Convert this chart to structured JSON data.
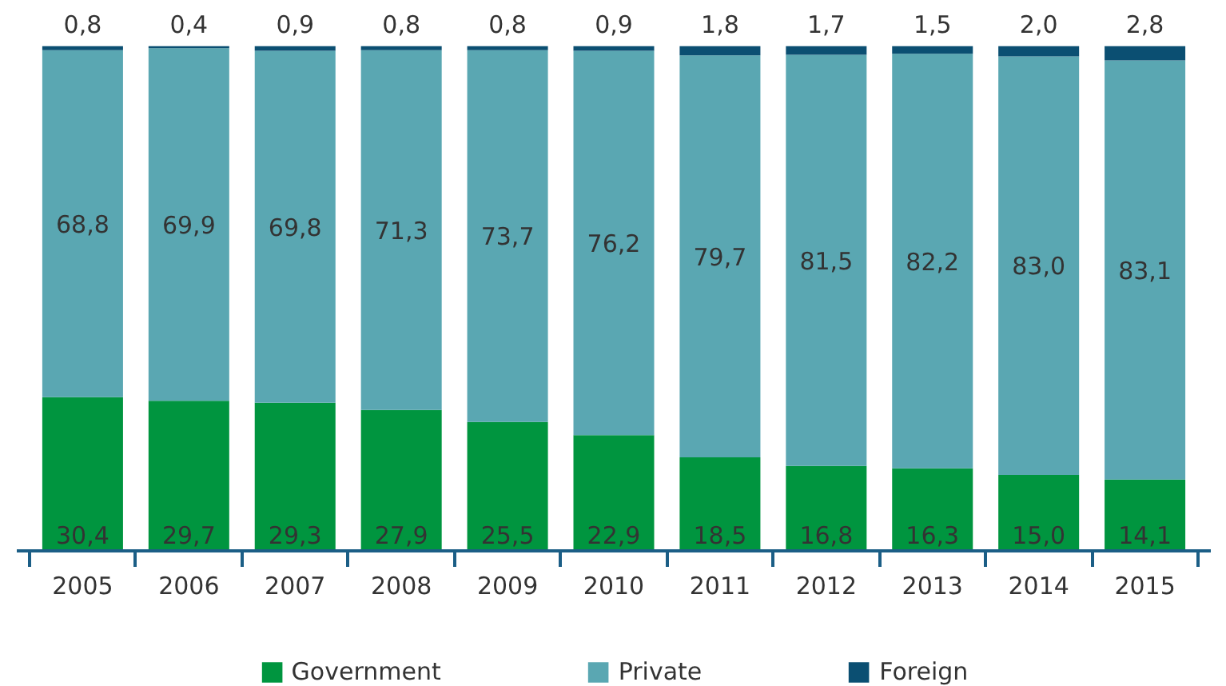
{
  "chart_data": {
    "type": "bar",
    "stacked": true,
    "legend": "bottom",
    "categories": [
      "2005",
      "2006",
      "2007",
      "2008",
      "2009",
      "2010",
      "2011",
      "2012",
      "2013",
      "2014",
      "2015"
    ],
    "series": [
      {
        "name": "Government",
        "color": "#00953f",
        "values": [
          30.4,
          29.7,
          29.3,
          27.9,
          25.5,
          22.9,
          18.5,
          16.8,
          16.3,
          15.0,
          14.1
        ],
        "value_labels": [
          "30,4",
          "29,7",
          "29,3",
          "27,9",
          "25,5",
          "22,9",
          "18,5",
          "16,8",
          "16,3",
          "15,0",
          "14,1"
        ]
      },
      {
        "name": "Private",
        "color": "#5aa7b2",
        "values": [
          68.8,
          69.9,
          69.8,
          71.3,
          73.7,
          76.2,
          79.7,
          81.5,
          82.2,
          83.0,
          83.1
        ],
        "value_labels": [
          "68,8",
          "69,9",
          "69,8",
          "71,3",
          "73,7",
          "76,2",
          "79,7",
          "81,5",
          "82,2",
          "83,0",
          "83,1"
        ]
      },
      {
        "name": "Foreign",
        "color": "#0b4f72",
        "values": [
          0.8,
          0.4,
          0.9,
          0.8,
          0.8,
          0.9,
          1.8,
          1.7,
          1.5,
          2.0,
          2.8
        ],
        "value_labels": [
          "0,8",
          "0,4",
          "0,9",
          "0,8",
          "0,8",
          "0,9",
          "1,8",
          "1,7",
          "1,5",
          "2,0",
          "2,8"
        ]
      }
    ]
  }
}
